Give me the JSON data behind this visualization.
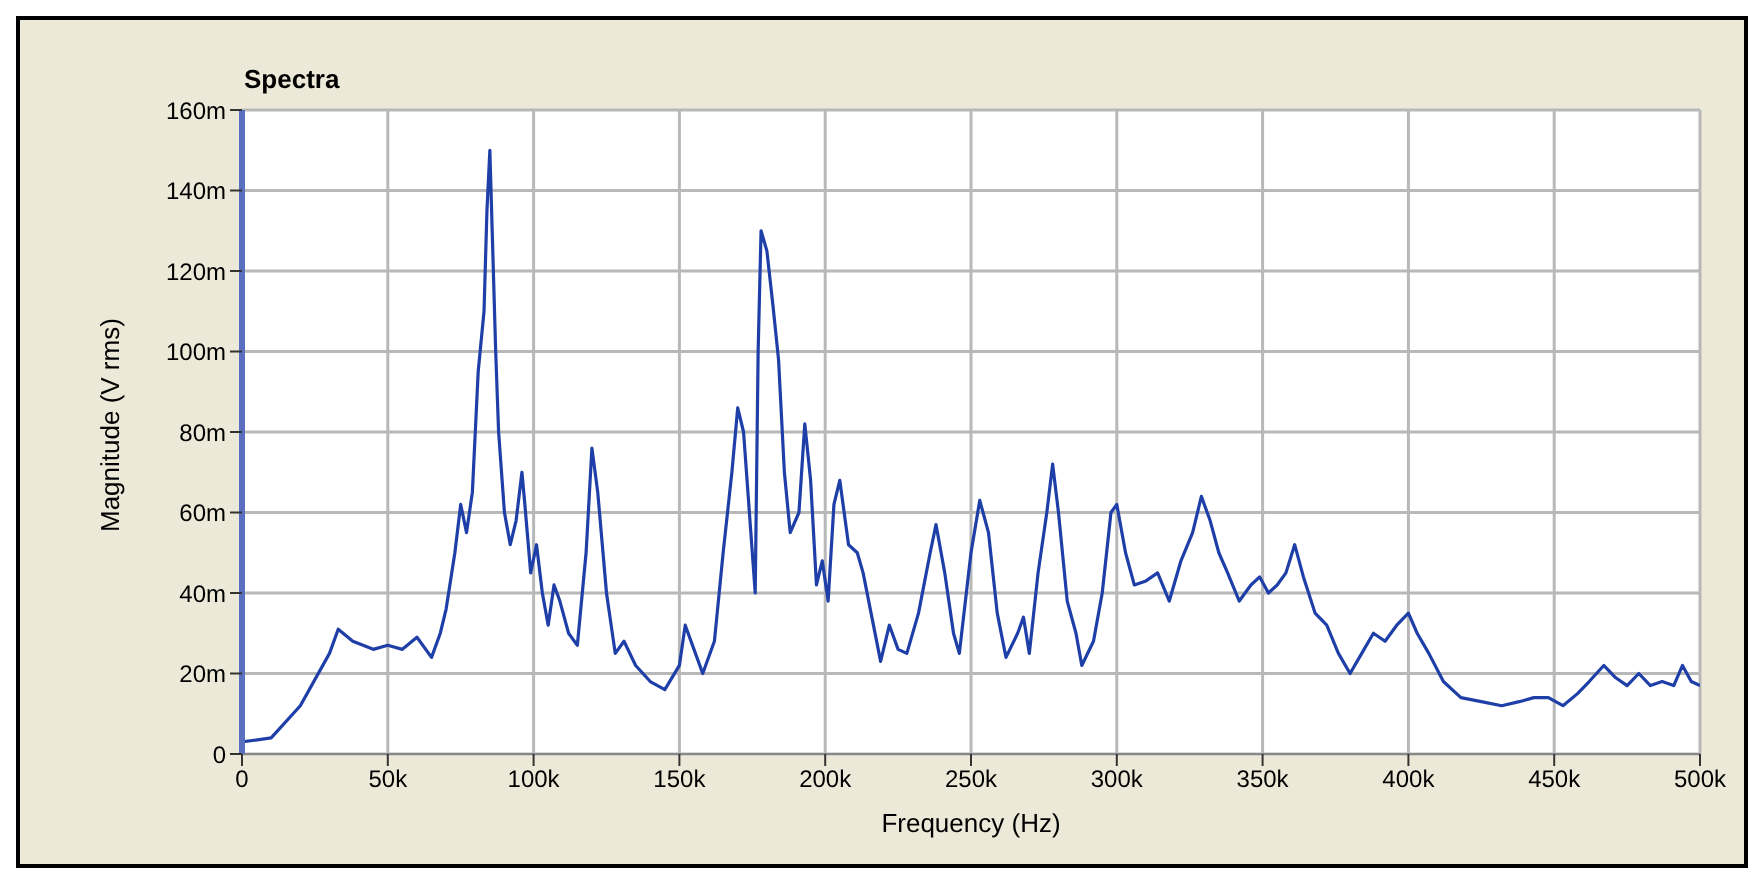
{
  "chart_data": {
    "type": "line",
    "title": "Spectra",
    "xlabel": "Frequency (Hz)",
    "ylabel": "Magnitude (V rms)",
    "x": [
      0,
      10000,
      20000,
      30000,
      33000,
      38000,
      45000,
      50000,
      55000,
      60000,
      65000,
      68000,
      70000,
      73000,
      75000,
      77000,
      79000,
      80000,
      81000,
      83000,
      84000,
      85000,
      86000,
      87000,
      88000,
      90000,
      92000,
      94000,
      96000,
      97000,
      99000,
      101000,
      103000,
      105000,
      107000,
      109000,
      112000,
      115000,
      118000,
      120000,
      122000,
      125000,
      128000,
      131000,
      135000,
      140000,
      145000,
      150000,
      152000,
      155000,
      158000,
      162000,
      165000,
      168000,
      170000,
      172000,
      174000,
      176000,
      177000,
      178000,
      180000,
      182000,
      184000,
      186000,
      188000,
      191000,
      193000,
      195000,
      197000,
      199000,
      201000,
      203000,
      205000,
      208000,
      211000,
      213000,
      216000,
      219000,
      222000,
      225000,
      228000,
      232000,
      236000,
      238000,
      241000,
      244000,
      246000,
      250000,
      253000,
      256000,
      259000,
      262000,
      266000,
      268000,
      270000,
      273000,
      276000,
      278000,
      280000,
      283000,
      286000,
      288000,
      292000,
      295000,
      298000,
      300000,
      303000,
      306000,
      310000,
      314000,
      318000,
      322000,
      326000,
      329000,
      332000,
      335000,
      338000,
      342000,
      346000,
      349000,
      352000,
      355000,
      358000,
      361000,
      364000,
      368000,
      372000,
      376000,
      380000,
      384000,
      388000,
      392000,
      396000,
      400000,
      403000,
      407000,
      412000,
      418000,
      425000,
      432000,
      438000,
      443000,
      448000,
      453000,
      458000,
      462000,
      467000,
      471000,
      475000,
      479000,
      483000,
      487000,
      491000,
      494000,
      497000,
      500000
    ],
    "series": [
      {
        "color": "#1f3fa8",
        "values": [
          3,
          4,
          12,
          25,
          31,
          28,
          26,
          27,
          26,
          29,
          24,
          30,
          36,
          50,
          62,
          55,
          65,
          80,
          95,
          110,
          135,
          150,
          125,
          100,
          80,
          60,
          52,
          58,
          70,
          62,
          45,
          52,
          40,
          32,
          42,
          38,
          30,
          27,
          50,
          76,
          65,
          40,
          25,
          28,
          22,
          18,
          16,
          22,
          32,
          26,
          20,
          28,
          50,
          70,
          86,
          80,
          60,
          40,
          100,
          130,
          125,
          112,
          98,
          70,
          55,
          60,
          82,
          68,
          42,
          48,
          38,
          62,
          68,
          52,
          50,
          45,
          34,
          23,
          32,
          26,
          25,
          35,
          50,
          57,
          45,
          30,
          25,
          50,
          63,
          55,
          35,
          24,
          30,
          34,
          25,
          45,
          60,
          72,
          60,
          38,
          30,
          22,
          28,
          40,
          60,
          62,
          50,
          42,
          43,
          45,
          38,
          48,
          55,
          64,
          58,
          50,
          45,
          38,
          42,
          44,
          40,
          42,
          45,
          52,
          44,
          35,
          32,
          25,
          20,
          25,
          30,
          28,
          32,
          35,
          30,
          25,
          18,
          14,
          13,
          12,
          13,
          14,
          14,
          12,
          15,
          18,
          22,
          19,
          17,
          20,
          17,
          18,
          17,
          22,
          18,
          17
        ]
      }
    ],
    "xlim": [
      0,
      500000
    ],
    "xticks": [
      {
        "value": 0,
        "label": "0"
      },
      {
        "value": 50000,
        "label": "50k"
      },
      {
        "value": 100000,
        "label": "100k"
      },
      {
        "value": 150000,
        "label": "150k"
      },
      {
        "value": 200000,
        "label": "200k"
      },
      {
        "value": 250000,
        "label": "250k"
      },
      {
        "value": 300000,
        "label": "300k"
      },
      {
        "value": 350000,
        "label": "350k"
      },
      {
        "value": 400000,
        "label": "400k"
      },
      {
        "value": 450000,
        "label": "450k"
      },
      {
        "value": 500000,
        "label": "500k"
      }
    ],
    "ylim": [
      0,
      160
    ],
    "yticks": [
      {
        "value": 0,
        "label": "0"
      },
      {
        "value": 20,
        "label": "20m"
      },
      {
        "value": 40,
        "label": "40m"
      },
      {
        "value": 60,
        "label": "60m"
      },
      {
        "value": 80,
        "label": "80m"
      },
      {
        "value": 100,
        "label": "100m"
      },
      {
        "value": 120,
        "label": "120m"
      },
      {
        "value": 140,
        "label": "140m"
      },
      {
        "value": 160,
        "label": "160m"
      }
    ],
    "grid": true
  }
}
